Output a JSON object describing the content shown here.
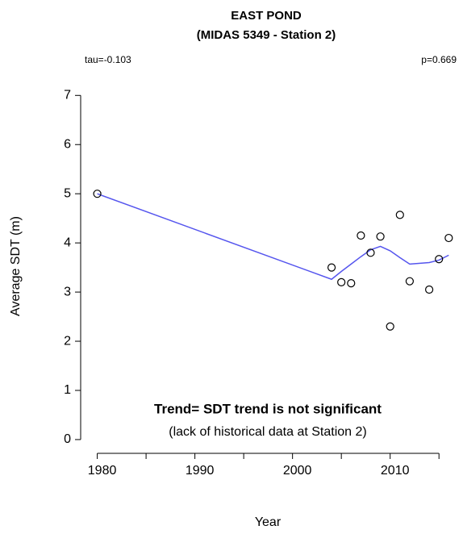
{
  "chart_data": {
    "type": "scatter",
    "title": [
      "EAST POND",
      "(MIDAS 5349 - Station 2)"
    ],
    "xlabel": "Year",
    "ylabel": "Average SDT (m)",
    "annotations": {
      "tau": "tau=-0.103",
      "p": "p=0.669",
      "trend": "Trend= SDT trend is not significant",
      "note": "(lack of historical data at Station 2)"
    },
    "x": [
      1980,
      2004,
      2005,
      2006,
      2007,
      2008,
      2009,
      2010,
      2011,
      2012,
      2014,
      2015,
      2016
    ],
    "values": [
      5.0,
      3.5,
      3.2,
      3.18,
      4.15,
      3.8,
      4.13,
      2.3,
      4.57,
      3.22,
      3.05,
      3.67,
      4.1
    ],
    "smooth": {
      "color": "#5555ee",
      "x": [
        1980,
        2004,
        2005,
        2006,
        2007,
        2008,
        2009,
        2010,
        2011,
        2012,
        2014,
        2015,
        2016
      ],
      "values": [
        5.0,
        3.26,
        3.42,
        3.57,
        3.72,
        3.86,
        3.93,
        3.84,
        3.7,
        3.57,
        3.6,
        3.65,
        3.75
      ]
    },
    "xlim": [
      1978.3,
      2016.8
    ],
    "ylim": [
      -0.28,
      7.3
    ],
    "xticks": [
      1980,
      1990,
      2000,
      2010
    ],
    "xminorticks": [
      1985,
      1995,
      2005,
      2015
    ],
    "yticks": [
      0,
      1,
      2,
      3,
      4,
      5,
      6,
      7
    ]
  }
}
